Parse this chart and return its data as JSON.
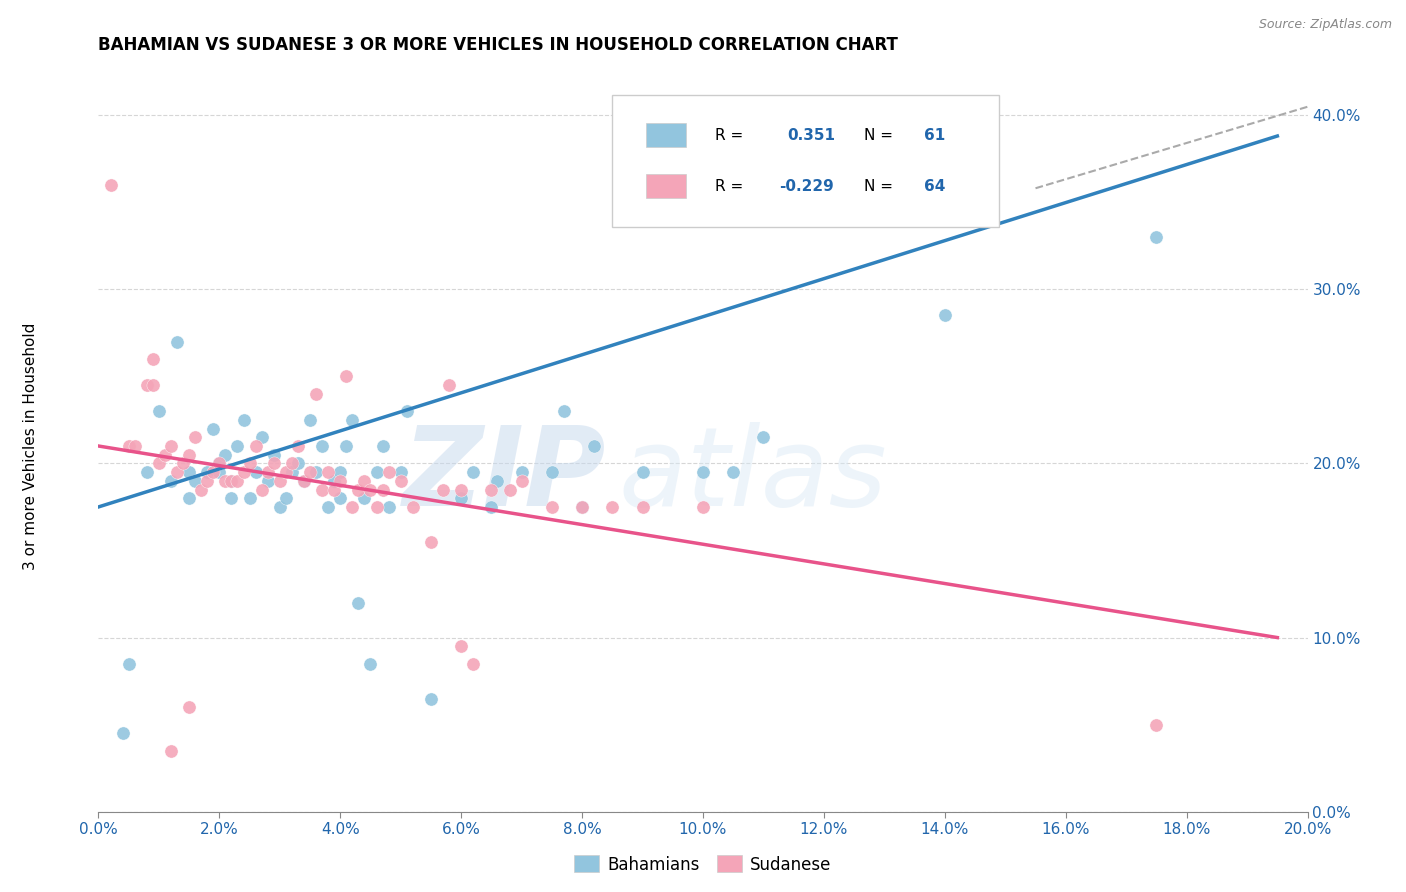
{
  "title": "BAHAMIAN VS SUDANESE 3 OR MORE VEHICLES IN HOUSEHOLD CORRELATION CHART",
  "source": "Source: ZipAtlas.com",
  "ylabel": "3 or more Vehicles in Household",
  "xlim": [
    0.0,
    0.2
  ],
  "ylim": [
    0.0,
    0.42
  ],
  "watermark_zip": "ZIP",
  "watermark_atlas": "atlas",
  "blue_color": "#92c5de",
  "pink_color": "#f4a5b8",
  "blue_line_color": "#3182bd",
  "pink_line_color": "#e8538a",
  "blue_scatter": [
    [
      0.005,
      0.085
    ],
    [
      0.008,
      0.195
    ],
    [
      0.01,
      0.23
    ],
    [
      0.012,
      0.19
    ],
    [
      0.013,
      0.27
    ],
    [
      0.015,
      0.18
    ],
    [
      0.015,
      0.195
    ],
    [
      0.016,
      0.19
    ],
    [
      0.018,
      0.195
    ],
    [
      0.019,
      0.22
    ],
    [
      0.02,
      0.195
    ],
    [
      0.02,
      0.2
    ],
    [
      0.021,
      0.205
    ],
    [
      0.022,
      0.18
    ],
    [
      0.022,
      0.19
    ],
    [
      0.023,
      0.21
    ],
    [
      0.024,
      0.225
    ],
    [
      0.025,
      0.18
    ],
    [
      0.026,
      0.195
    ],
    [
      0.027,
      0.215
    ],
    [
      0.028,
      0.19
    ],
    [
      0.029,
      0.205
    ],
    [
      0.03,
      0.175
    ],
    [
      0.031,
      0.18
    ],
    [
      0.032,
      0.195
    ],
    [
      0.033,
      0.2
    ],
    [
      0.034,
      0.19
    ],
    [
      0.035,
      0.225
    ],
    [
      0.036,
      0.195
    ],
    [
      0.037,
      0.21
    ],
    [
      0.038,
      0.175
    ],
    [
      0.039,
      0.19
    ],
    [
      0.04,
      0.18
    ],
    [
      0.04,
      0.195
    ],
    [
      0.041,
      0.21
    ],
    [
      0.042,
      0.225
    ],
    [
      0.043,
      0.12
    ],
    [
      0.044,
      0.18
    ],
    [
      0.045,
      0.085
    ],
    [
      0.046,
      0.195
    ],
    [
      0.047,
      0.21
    ],
    [
      0.048,
      0.175
    ],
    [
      0.05,
      0.195
    ],
    [
      0.051,
      0.23
    ],
    [
      0.055,
      0.065
    ],
    [
      0.06,
      0.18
    ],
    [
      0.062,
      0.195
    ],
    [
      0.065,
      0.175
    ],
    [
      0.066,
      0.19
    ],
    [
      0.07,
      0.195
    ],
    [
      0.075,
      0.195
    ],
    [
      0.077,
      0.23
    ],
    [
      0.08,
      0.175
    ],
    [
      0.082,
      0.21
    ],
    [
      0.09,
      0.195
    ],
    [
      0.1,
      0.195
    ],
    [
      0.105,
      0.195
    ],
    [
      0.11,
      0.215
    ],
    [
      0.14,
      0.285
    ],
    [
      0.175,
      0.33
    ],
    [
      0.004,
      0.045
    ]
  ],
  "pink_scatter": [
    [
      0.002,
      0.36
    ],
    [
      0.005,
      0.21
    ],
    [
      0.006,
      0.21
    ],
    [
      0.008,
      0.245
    ],
    [
      0.009,
      0.245
    ],
    [
      0.009,
      0.26
    ],
    [
      0.01,
      0.2
    ],
    [
      0.011,
      0.205
    ],
    [
      0.012,
      0.21
    ],
    [
      0.013,
      0.195
    ],
    [
      0.014,
      0.2
    ],
    [
      0.015,
      0.205
    ],
    [
      0.016,
      0.215
    ],
    [
      0.017,
      0.185
    ],
    [
      0.018,
      0.19
    ],
    [
      0.019,
      0.195
    ],
    [
      0.02,
      0.2
    ],
    [
      0.021,
      0.19
    ],
    [
      0.022,
      0.19
    ],
    [
      0.023,
      0.19
    ],
    [
      0.024,
      0.195
    ],
    [
      0.025,
      0.2
    ],
    [
      0.026,
      0.21
    ],
    [
      0.027,
      0.185
    ],
    [
      0.028,
      0.195
    ],
    [
      0.029,
      0.2
    ],
    [
      0.03,
      0.19
    ],
    [
      0.031,
      0.195
    ],
    [
      0.032,
      0.2
    ],
    [
      0.033,
      0.21
    ],
    [
      0.034,
      0.19
    ],
    [
      0.035,
      0.195
    ],
    [
      0.036,
      0.24
    ],
    [
      0.037,
      0.185
    ],
    [
      0.038,
      0.195
    ],
    [
      0.039,
      0.185
    ],
    [
      0.04,
      0.19
    ],
    [
      0.041,
      0.25
    ],
    [
      0.042,
      0.175
    ],
    [
      0.043,
      0.185
    ],
    [
      0.044,
      0.19
    ],
    [
      0.045,
      0.185
    ],
    [
      0.046,
      0.175
    ],
    [
      0.047,
      0.185
    ],
    [
      0.048,
      0.195
    ],
    [
      0.05,
      0.19
    ],
    [
      0.052,
      0.175
    ],
    [
      0.055,
      0.155
    ],
    [
      0.057,
      0.185
    ],
    [
      0.058,
      0.245
    ],
    [
      0.06,
      0.185
    ],
    [
      0.062,
      0.085
    ],
    [
      0.065,
      0.185
    ],
    [
      0.068,
      0.185
    ],
    [
      0.07,
      0.19
    ],
    [
      0.075,
      0.175
    ],
    [
      0.08,
      0.175
    ],
    [
      0.085,
      0.175
    ],
    [
      0.09,
      0.175
    ],
    [
      0.1,
      0.175
    ],
    [
      0.012,
      0.035
    ],
    [
      0.015,
      0.06
    ],
    [
      0.175,
      0.05
    ],
    [
      0.06,
      0.095
    ]
  ],
  "blue_line_x": [
    0.0,
    0.195
  ],
  "blue_line_y": [
    0.175,
    0.388
  ],
  "pink_line_x": [
    0.0,
    0.195
  ],
  "pink_line_y": [
    0.21,
    0.1
  ],
  "dashed_line_x": [
    0.155,
    0.205
  ],
  "dashed_line_y": [
    0.358,
    0.41
  ]
}
